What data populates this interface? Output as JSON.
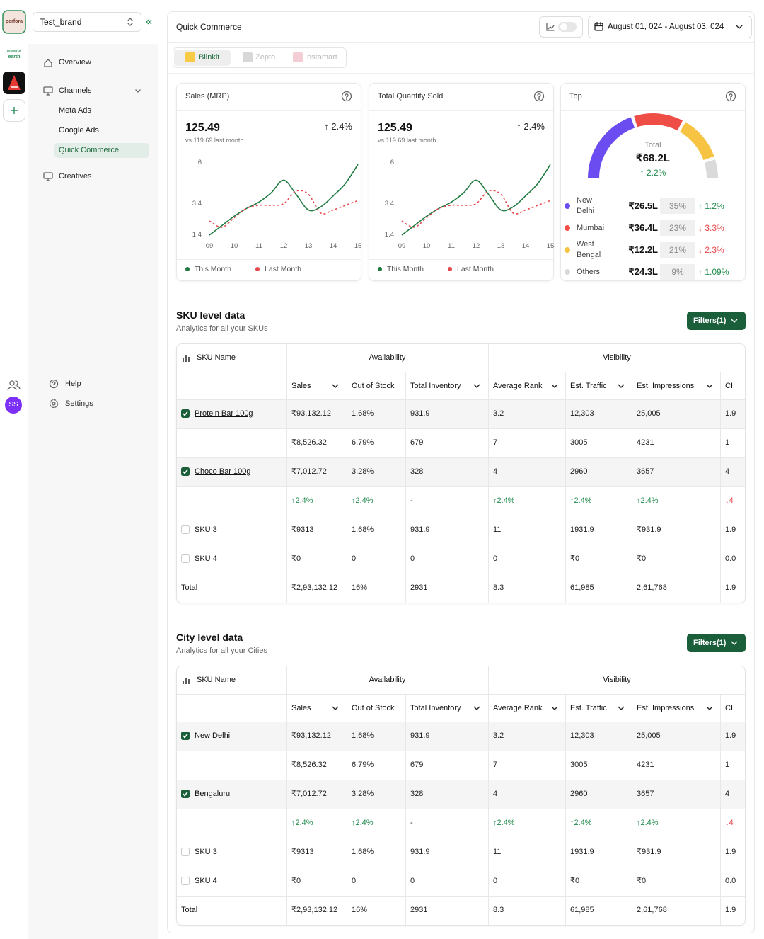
{
  "sidebar": {
    "logos": [
      "perfora",
      "mama earth"
    ],
    "brand": "Test_brand",
    "nav": [
      "Overview",
      "Channels",
      "Meta Ads",
      "Google Ads",
      "Quick Commerce",
      "Creatives"
    ],
    "active_nav": 4,
    "footer_nav": [
      "Help",
      "Settings"
    ],
    "avatar": "SS"
  },
  "header": {
    "title": "Quick Commerce",
    "date_range": "August 01, 024 - August 03, 024",
    "tabs": [
      "Blinkit",
      "Zepto",
      "Instamart"
    ],
    "active_tab": 0
  },
  "chart_data": [
    {
      "type": "line",
      "title": "Sales (MRP)",
      "headline": "125.49",
      "change": "↑ 2.4%",
      "comparison": "vs 119.69 last month",
      "x": [
        9,
        9.5,
        10,
        10.5,
        11,
        11.5,
        12,
        12.5,
        13,
        13.5,
        14,
        14.5,
        15
      ],
      "xlim": [
        9,
        15
      ],
      "xticks": [
        {
          "value": 9,
          "label": "09"
        },
        10,
        11,
        12,
        13,
        14,
        15
      ],
      "ylim": [
        1.4,
        6
      ],
      "yticks": [
        1.4,
        3.4,
        6
      ],
      "series": [
        {
          "name": "This Month",
          "color": "#1f7a40",
          "values": [
            1.4,
            2.0,
            2.6,
            3.1,
            3.5,
            4.1,
            4.9,
            4.0,
            3.0,
            3.2,
            3.9,
            4.7,
            5.9
          ]
        },
        {
          "name": "Last Month",
          "color": "#e5484d",
          "dashed": true,
          "values": [
            2.3,
            1.9,
            2.5,
            3.1,
            3.3,
            3.3,
            3.4,
            4.2,
            4.0,
            2.8,
            3.0,
            3.3,
            3.6
          ]
        }
      ]
    },
    {
      "type": "line",
      "title": "Total Quantity Sold",
      "headline": "125.49",
      "change": "↑ 2.4%",
      "comparison": "vs 119.69 last month",
      "x": [
        9,
        9.5,
        10,
        10.5,
        11,
        11.5,
        12,
        12.5,
        13,
        13.5,
        14,
        14.5,
        15
      ],
      "xlim": [
        9,
        15
      ],
      "xticks": [
        {
          "value": 9,
          "label": "09"
        },
        10,
        11,
        12,
        13,
        14,
        15
      ],
      "ylim": [
        1.4,
        6
      ],
      "yticks": [
        1.4,
        3.4,
        6
      ],
      "series": [
        {
          "name": "This Month",
          "color": "#1f7a40",
          "values": [
            1.4,
            2.0,
            2.6,
            3.1,
            3.5,
            4.1,
            4.9,
            4.0,
            3.0,
            3.2,
            3.9,
            4.7,
            5.9
          ]
        },
        {
          "name": "Last Month",
          "color": "#e5484d",
          "dashed": true,
          "values": [
            2.3,
            1.9,
            2.5,
            3.1,
            3.3,
            3.3,
            3.4,
            4.2,
            4.0,
            2.8,
            3.0,
            3.3,
            3.6
          ]
        }
      ]
    },
    {
      "type": "gauge",
      "title": "Top",
      "total_label": "Total",
      "total": "₹68.2L",
      "change": "↑ 2.2%",
      "categories": [
        "New Delhi",
        "Mumbai",
        "West Bengal",
        "Others"
      ],
      "values": [
        35,
        23,
        21,
        9
      ],
      "value_labels": [
        "35%",
        "23%",
        "21%",
        "9%"
      ],
      "amounts": [
        "₹26.5L",
        "₹36.4L",
        "₹12.2L",
        "₹24.3L"
      ],
      "changes": [
        "↑ 1.2%",
        "↓ 3.3%",
        "↓ 2.3%",
        "↑ 1.09%"
      ],
      "colors": [
        "#6a4cf0",
        "#ef4e46",
        "#f6c343",
        "#dadada"
      ]
    }
  ],
  "sku_table": {
    "title": "SKU level data",
    "subtitle": "Analytics for all your SKUs",
    "filter": "Filters(1)",
    "name_header": "SKU Name",
    "groups": [
      "Availability",
      "Visibility"
    ],
    "columns": [
      "Sales",
      "Out of Stock",
      "Total Inventory",
      "Average Rank",
      "Est. Traffic",
      "Est. Impressions",
      "CI"
    ],
    "rows": [
      {
        "name": "Protein Bar 100g",
        "checked": true,
        "cells": [
          "₹93,132.12",
          "1.68%",
          "931.9",
          "3.2",
          "12,303",
          "25,005",
          "1.9"
        ]
      },
      {
        "cells": [
          "₹8,526.32",
          "6.79%",
          "679",
          "7",
          "3005",
          "4231",
          "1"
        ]
      },
      {
        "name": "Choco Bar 100g",
        "checked": true,
        "cells": [
          "₹7,012.72",
          "3.28%",
          "328",
          "4",
          "2960",
          "3657",
          "4"
        ]
      },
      {
        "cells": [
          "↑2.4%",
          "↑2.4%",
          "-",
          "↑2.4%",
          "↑2.4%",
          "↑2.4%",
          "↓4"
        ]
      },
      {
        "name": "SKU 3",
        "checked": false,
        "cells": [
          "₹9313",
          "1.68%",
          "931.9",
          "11",
          "1931.9",
          "₹931.9",
          "1.9"
        ]
      },
      {
        "name": "SKU 4",
        "checked": false,
        "cells": [
          "₹0",
          "0",
          "0",
          "0",
          "₹0",
          "₹0",
          "0.0"
        ]
      },
      {
        "name": "Total",
        "cells": [
          "₹2,93,132.12",
          "16%",
          "2931",
          "8.3",
          "61,985",
          "2,61,768",
          "1.9"
        ]
      }
    ]
  },
  "city_table": {
    "title": "City level data",
    "subtitle": "Analytics for all your Cities",
    "filter": "Filters(1)",
    "name_header": "SKU Name",
    "groups": [
      "Availability",
      "Visibility"
    ],
    "columns": [
      "Sales",
      "Out of Stock",
      "Total Inventory",
      "Average Rank",
      "Est. Traffic",
      "Est. Impressions",
      "CI"
    ],
    "rows": [
      {
        "name": "New Delhi",
        "checked": true,
        "cells": [
          "₹93,132.12",
          "1.68%",
          "931.9",
          "3.2",
          "12,303",
          "25,005",
          "1.9"
        ]
      },
      {
        "cells": [
          "₹8,526.32",
          "6.79%",
          "679",
          "7",
          "3005",
          "4231",
          "1"
        ]
      },
      {
        "name": "Bengaluru",
        "checked": true,
        "cells": [
          "₹7,012.72",
          "3.28%",
          "328",
          "4",
          "2960",
          "3657",
          "4"
        ]
      },
      {
        "cells": [
          "↑2.4%",
          "↑2.4%",
          "-",
          "↑2.4%",
          "↑2.4%",
          "↑2.4%",
          "↓4"
        ]
      },
      {
        "name": "SKU 3",
        "checked": false,
        "cells": [
          "₹9313",
          "1.68%",
          "931.9",
          "11",
          "1931.9",
          "₹931.9",
          "1.9"
        ]
      },
      {
        "name": "SKU 4",
        "checked": false,
        "cells": [
          "₹0",
          "0",
          "0",
          "0",
          "₹0",
          "₹0",
          "0.0"
        ]
      },
      {
        "name": "Total",
        "cells": [
          "₹2,93,132.12",
          "16%",
          "2931",
          "8.3",
          "61,985",
          "2,61,768",
          "1.9"
        ]
      }
    ]
  }
}
